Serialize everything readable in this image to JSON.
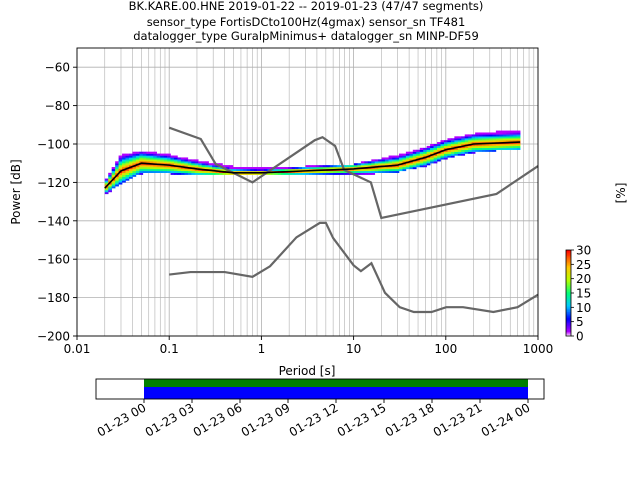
{
  "chart_data": [
    {
      "type": "heatmap",
      "title_lines": [
        "BK.KARE.00.HNE   2019-01-22 -- 2019-01-23  (47/47 segments)",
        "sensor_type FortisDCto100Hz(4gmax) sensor_sn TF481",
        "datalogger_type GuralpMinimus+ datalogger_sn MINP-DF59"
      ],
      "xlabel": "Period [s]",
      "ylabel": "Power [dB]",
      "xscale": "log",
      "xlim": [
        0.01,
        1000
      ],
      "ylim": [
        -200,
        -50
      ],
      "xticks": [
        0.01,
        0.1,
        1,
        10,
        100,
        1000
      ],
      "xtick_labels": [
        "0.01",
        "0.1",
        "1",
        "10",
        "100",
        "1000"
      ],
      "yticks": [
        -200,
        -180,
        -160,
        -140,
        -120,
        -100,
        -80,
        -60
      ],
      "ytick_labels": [
        "−200",
        "−180",
        "−160",
        "−140",
        "−120",
        "−100",
        "−80",
        "−60"
      ],
      "grid": true,
      "colorbar": {
        "label": "[%]",
        "range": [
          0,
          30
        ],
        "ticks": [
          0,
          5,
          10,
          15,
          20,
          25,
          30
        ],
        "tick_labels": [
          "0",
          "5",
          "10",
          "15",
          "20",
          "25",
          "30"
        ],
        "colormap": "pqlx"
      },
      "noise_model_high": [
        {
          "period": 0.1,
          "power": -91.5
        },
        {
          "period": 0.22,
          "power": -97.4
        },
        {
          "period": 0.32,
          "power": -110.5
        },
        {
          "period": 0.8,
          "power": -120
        },
        {
          "period": 3.8,
          "power": -98
        },
        {
          "period": 4.6,
          "power": -96.5
        },
        {
          "period": 6.3,
          "power": -101
        },
        {
          "period": 7.9,
          "power": -113.5
        },
        {
          "period": 15.4,
          "power": -120
        },
        {
          "period": 20,
          "power": -138.5
        },
        {
          "period": 354.8,
          "power": -126
        },
        {
          "period": 1000,
          "power": -111.5
        }
      ],
      "noise_model_low": [
        {
          "period": 0.1,
          "power": -168
        },
        {
          "period": 0.17,
          "power": -166.7
        },
        {
          "period": 0.4,
          "power": -166.7
        },
        {
          "period": 0.8,
          "power": -169.2
        },
        {
          "period": 1.24,
          "power": -163.7
        },
        {
          "period": 2.4,
          "power": -148.6
        },
        {
          "period": 4.3,
          "power": -141.1
        },
        {
          "period": 5.0,
          "power": -141.1
        },
        {
          "period": 6.0,
          "power": -149
        },
        {
          "period": 10.0,
          "power": -163.2
        },
        {
          "period": 12.0,
          "power": -166.2
        },
        {
          "period": 15.6,
          "power": -162.1
        },
        {
          "period": 21.9,
          "power": -177.5
        },
        {
          "period": 31.6,
          "power": -185
        },
        {
          "period": 45,
          "power": -187.5
        },
        {
          "period": 70,
          "power": -187.5
        },
        {
          "period": 101,
          "power": -185
        },
        {
          "period": 154,
          "power": -185
        },
        {
          "period": 328,
          "power": -187.5
        },
        {
          "period": 600,
          "power": -185
        },
        {
          "period": 1000,
          "power": -178.5
        }
      ],
      "mode_curve": [
        {
          "period": 0.02,
          "power": -123
        },
        {
          "period": 0.03,
          "power": -114
        },
        {
          "period": 0.05,
          "power": -110
        },
        {
          "period": 0.1,
          "power": -111
        },
        {
          "period": 0.2,
          "power": -113
        },
        {
          "period": 0.5,
          "power": -115
        },
        {
          "period": 1,
          "power": -115
        },
        {
          "period": 3,
          "power": -114
        },
        {
          "period": 10,
          "power": -113
        },
        {
          "period": 30,
          "power": -111
        },
        {
          "period": 60,
          "power": -107
        },
        {
          "period": 100,
          "power": -103
        },
        {
          "period": 200,
          "power": -100
        },
        {
          "period": 640,
          "power": -99
        }
      ],
      "ppsd_spread": [
        {
          "period": 0.02,
          "low": -126,
          "high": -120
        },
        {
          "period": 0.03,
          "low": -120,
          "high": -106
        },
        {
          "period": 0.05,
          "low": -115,
          "high": -104
        },
        {
          "period": 0.1,
          "low": -115,
          "high": -106
        },
        {
          "period": 0.2,
          "low": -116,
          "high": -109
        },
        {
          "period": 0.5,
          "low": -116,
          "high": -112
        },
        {
          "period": 1,
          "low": -116,
          "high": -113
        },
        {
          "period": 3,
          "low": -116,
          "high": -112
        },
        {
          "period": 10,
          "low": -116,
          "high": -111
        },
        {
          "period": 30,
          "low": -114,
          "high": -106
        },
        {
          "period": 60,
          "low": -111,
          "high": -102
        },
        {
          "period": 100,
          "low": -107,
          "high": -98
        },
        {
          "period": 200,
          "low": -104,
          "high": -95
        },
        {
          "period": 640,
          "low": -102,
          "high": -93
        }
      ]
    },
    {
      "type": "bar",
      "title": "",
      "x_tick_labels": [
        "01-23 00",
        "01-23 03",
        "01-23 06",
        "01-23 09",
        "01-23 12",
        "01-23 15",
        "01-23 18",
        "01-23 21",
        "01-24 00"
      ],
      "xlim": [
        "2019-01-22 21:00",
        "2019-01-24 01:00"
      ],
      "coverage_start": "2019-01-23 00:00",
      "coverage_end": "2019-01-24 00:00",
      "colors": {
        "used": "#0000ff",
        "available": "#008000"
      }
    }
  ]
}
